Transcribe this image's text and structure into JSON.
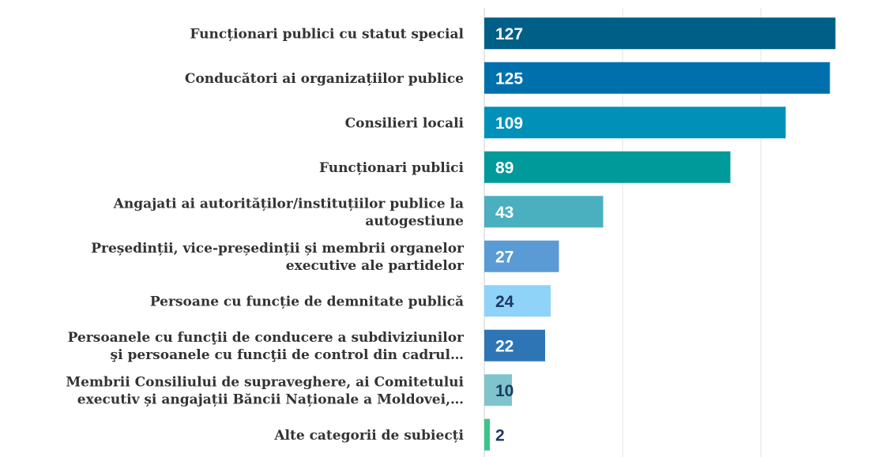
{
  "chart_data": {
    "type": "hbar",
    "categories": [
      [
        "Funcționari publici cu statut special"
      ],
      [
        "Conducători ai organizațiilor publice"
      ],
      [
        "Consilieri locali"
      ],
      [
        "Funcționari publici"
      ],
      [
        "Angajati ai  autorităților/instituțiilor publice la",
        "autogestiune"
      ],
      [
        "Președinții, vice-președinții și membrii organelor",
        "executive ale partidelor"
      ],
      [
        "Persoane cu funcție de demnitate publică"
      ],
      [
        "Persoanele cu funcţii de conducere a subdiviziunilor",
        "şi persoanele cu funcţii de control din cadrul…"
      ],
      [
        "Membrii Consiliului de supraveghere, ai Comitetului",
        "executiv și angajații Băncii Naționale a Moldovei,…"
      ],
      [
        "Alte categorii de subiecți"
      ]
    ],
    "values": [
      127,
      125,
      109,
      89,
      43,
      27,
      24,
      22,
      10,
      2
    ],
    "colors": [
      "#005f86",
      "#0070ad",
      "#0090b8",
      "#009a9a",
      "#4aafbf",
      "#5b9bd5",
      "#8fd3f9",
      "#2e75b6",
      "#7fc4cc",
      "#3cc48a"
    ],
    "label_colors": [
      "#ffffff",
      "#ffffff",
      "#ffffff",
      "#ffffff",
      "#ffffff",
      "#ffffff",
      "#1f3864",
      "#ffffff",
      "#1f3864",
      "#1f3864"
    ],
    "xlim": [
      0,
      146
    ],
    "xticks": [
      0,
      50,
      100
    ],
    "grid": true
  }
}
